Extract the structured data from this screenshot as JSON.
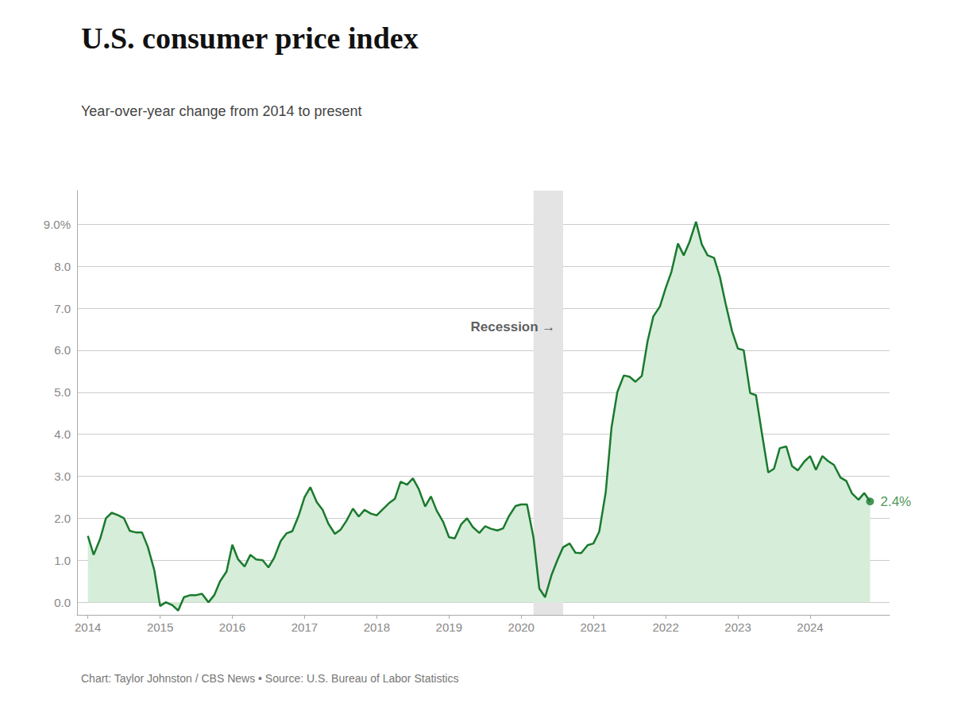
{
  "chart_data": {
    "type": "line",
    "title": "U.S. consumer price index",
    "subtitle": "Year-over-year change from 2014 to present",
    "footer": "Chart: Taylor Johnston / CBS News • Source: U.S. Bureau of Labor Statistics",
    "color": "#1a7a2e",
    "fill_color": "#d6edd9",
    "background_color": "#ffffff",
    "bands": [
      {
        "start": 2020.17,
        "end": 2020.58,
        "color": "#e4e4e4"
      }
    ],
    "last_label": "2.4%",
    "annotations": [
      {
        "text": "Recession →",
        "x": 2019.3,
        "y": 6.55
      }
    ],
    "grid": true,
    "xlim": [
      2013.85,
      2025.1
    ],
    "xticks": [
      2014,
      2015,
      2016,
      2017,
      2018,
      2019,
      2020,
      2021,
      2022,
      2023,
      2024
    ],
    "ylim": [
      -0.3,
      9.8
    ],
    "yticks": [
      {
        "value": 0.0,
        "label": "0.0"
      },
      {
        "value": 1.0,
        "label": "1.0"
      },
      {
        "value": 2.0,
        "label": "2.0"
      },
      {
        "value": 3.0,
        "label": "3.0"
      },
      {
        "value": 4.0,
        "label": "4.0"
      },
      {
        "value": 5.0,
        "label": "5.0"
      },
      {
        "value": 6.0,
        "label": "6.0"
      },
      {
        "value": 7.0,
        "label": "7.0"
      },
      {
        "value": 8.0,
        "label": "8.0"
      },
      {
        "value": 9.0,
        "label": "9.0%"
      }
    ],
    "x": [
      2014.0,
      2014.08,
      2014.17,
      2014.25,
      2014.33,
      2014.42,
      2014.5,
      2014.58,
      2014.67,
      2014.75,
      2014.83,
      2014.92,
      2015.0,
      2015.08,
      2015.17,
      2015.25,
      2015.33,
      2015.42,
      2015.5,
      2015.58,
      2015.67,
      2015.75,
      2015.83,
      2015.92,
      2016.0,
      2016.08,
      2016.17,
      2016.25,
      2016.33,
      2016.42,
      2016.5,
      2016.58,
      2016.67,
      2016.75,
      2016.83,
      2016.92,
      2017.0,
      2017.08,
      2017.17,
      2017.25,
      2017.33,
      2017.42,
      2017.5,
      2017.58,
      2017.67,
      2017.75,
      2017.83,
      2017.92,
      2018.0,
      2018.08,
      2018.17,
      2018.25,
      2018.33,
      2018.42,
      2018.5,
      2018.58,
      2018.67,
      2018.75,
      2018.83,
      2018.92,
      2019.0,
      2019.08,
      2019.17,
      2019.25,
      2019.33,
      2019.42,
      2019.5,
      2019.58,
      2019.67,
      2019.75,
      2019.83,
      2019.92,
      2020.0,
      2020.08,
      2020.17,
      2020.25,
      2020.33,
      2020.42,
      2020.5,
      2020.58,
      2020.67,
      2020.75,
      2020.83,
      2020.92,
      2021.0,
      2021.08,
      2021.17,
      2021.25,
      2021.33,
      2021.42,
      2021.5,
      2021.58,
      2021.67,
      2021.75,
      2021.83,
      2021.92,
      2022.0,
      2022.08,
      2022.17,
      2022.25,
      2022.33,
      2022.42,
      2022.5,
      2022.58,
      2022.67,
      2022.75,
      2022.83,
      2022.92,
      2023.0,
      2023.08,
      2023.17,
      2023.25,
      2023.33,
      2023.42,
      2023.5,
      2023.58,
      2023.67,
      2023.75,
      2023.83,
      2023.92,
      2024.0,
      2024.08,
      2024.17,
      2024.25,
      2024.33,
      2024.42,
      2024.5,
      2024.58,
      2024.67,
      2024.75,
      2024.83
    ],
    "values": [
      1.58,
      1.13,
      1.51,
      2.0,
      2.13,
      2.07,
      2.0,
      1.7,
      1.66,
      1.66,
      1.32,
      0.76,
      -0.09,
      0.0,
      -0.07,
      -0.2,
      0.12,
      0.17,
      0.17,
      0.2,
      0.0,
      0.17,
      0.5,
      0.73,
      1.37,
      1.02,
      0.85,
      1.13,
      1.02,
      1.0,
      0.83,
      1.06,
      1.46,
      1.64,
      1.69,
      2.07,
      2.5,
      2.74,
      2.38,
      2.2,
      1.87,
      1.63,
      1.73,
      1.94,
      2.23,
      2.04,
      2.2,
      2.11,
      2.07,
      2.21,
      2.36,
      2.46,
      2.87,
      2.8,
      2.95,
      2.7,
      2.28,
      2.52,
      2.18,
      1.91,
      1.55,
      1.52,
      1.86,
      2.0,
      1.79,
      1.65,
      1.81,
      1.75,
      1.71,
      1.76,
      2.05,
      2.29,
      2.33,
      2.33,
      1.54,
      0.33,
      0.12,
      0.65,
      1.0,
      1.31,
      1.4,
      1.18,
      1.17,
      1.36,
      1.4,
      1.68,
      2.62,
      4.16,
      5.0,
      5.4,
      5.37,
      5.25,
      5.39,
      6.22,
      6.81,
      7.04,
      7.48,
      7.87,
      8.54,
      8.26,
      8.58,
      9.06,
      8.52,
      8.26,
      8.2,
      7.75,
      7.11,
      6.45,
      6.04,
      6.0,
      4.98,
      4.93,
      4.05,
      3.09,
      3.18,
      3.67,
      3.71,
      3.24,
      3.14,
      3.35,
      3.48,
      3.15,
      3.48,
      3.36,
      3.27,
      2.97,
      2.89,
      2.59,
      2.44,
      2.6,
      2.4
    ]
  }
}
